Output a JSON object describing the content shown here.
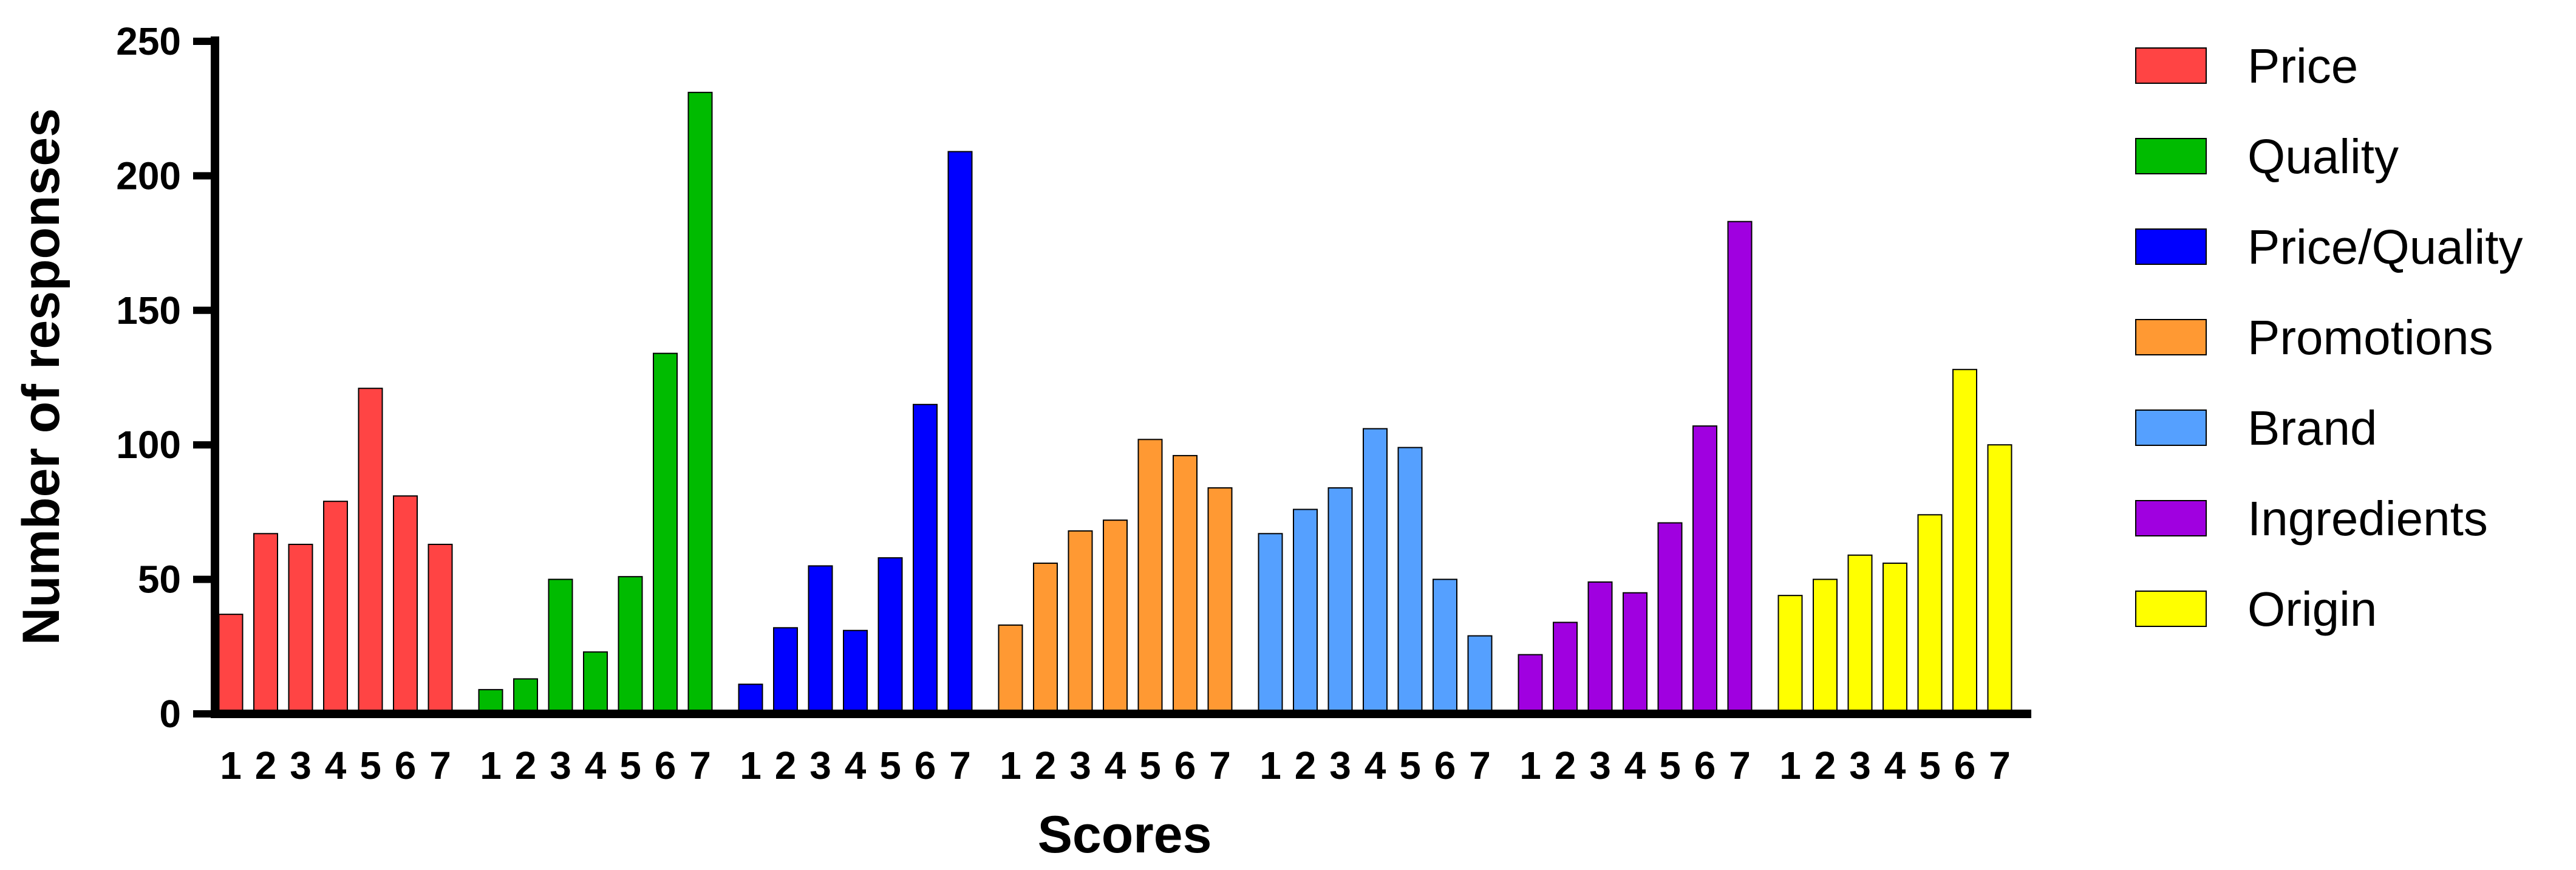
{
  "chart_data": {
    "type": "bar",
    "xlabel": "Scores",
    "ylabel": "Number of responses",
    "ylim": [
      0,
      250
    ],
    "yticks": [
      0,
      50,
      100,
      150,
      200,
      250
    ],
    "categories": [
      "1",
      "2",
      "3",
      "4",
      "5",
      "6",
      "7"
    ],
    "legend_position": "right",
    "series": [
      {
        "name": "Price",
        "color": "#ff4444",
        "values": [
          37,
          67,
          63,
          79,
          121,
          81,
          63
        ]
      },
      {
        "name": "Quality",
        "color": "#00bb00",
        "values": [
          9,
          13,
          50,
          23,
          51,
          134,
          231
        ]
      },
      {
        "name": "Price/Quality",
        "color": "#0000ff",
        "values": [
          11,
          32,
          55,
          31,
          58,
          115,
          209
        ]
      },
      {
        "name": "Promotions",
        "color": "#ff9933",
        "values": [
          33,
          56,
          68,
          72,
          102,
          96,
          84
        ]
      },
      {
        "name": "Brand",
        "color": "#55a0ff",
        "values": [
          67,
          76,
          84,
          106,
          99,
          50,
          29
        ]
      },
      {
        "name": "Ingredients",
        "color": "#a000e0",
        "values": [
          22,
          34,
          49,
          45,
          71,
          107,
          183
        ]
      },
      {
        "name": "Origin",
        "color": "#ffff00",
        "values": [
          44,
          50,
          59,
          56,
          74,
          128,
          100
        ]
      }
    ]
  }
}
